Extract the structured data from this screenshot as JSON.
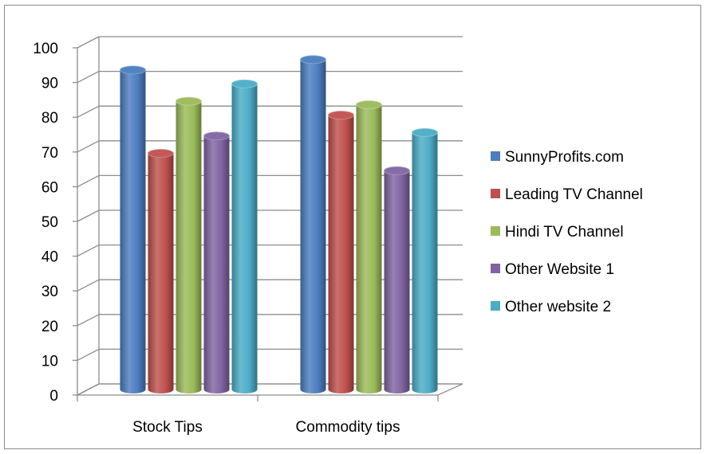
{
  "chart_data": {
    "type": "bar",
    "title": "",
    "xlabel": "",
    "ylabel": "",
    "categories": [
      "Stock Tips",
      "Commodity tips"
    ],
    "ylim": [
      0,
      100
    ],
    "yticks": [
      0,
      10,
      20,
      30,
      40,
      50,
      60,
      70,
      80,
      90,
      100
    ],
    "grid": true,
    "legend_position": "right",
    "series": [
      {
        "name": "SunnyProfits.com",
        "color": "#4a7ebf",
        "values": [
          92,
          95
        ]
      },
      {
        "name": "Leading TV Channel",
        "color": "#c0504d",
        "values": [
          68,
          79
        ]
      },
      {
        "name": "Hindi TV Channel",
        "color": "#9bbb59",
        "values": [
          83,
          82
        ]
      },
      {
        "name": "Other Website 1",
        "color": "#8064a2",
        "values": [
          73,
          63
        ]
      },
      {
        "name": "Other website 2",
        "color": "#4bacc6",
        "values": [
          88,
          74
        ]
      }
    ]
  }
}
